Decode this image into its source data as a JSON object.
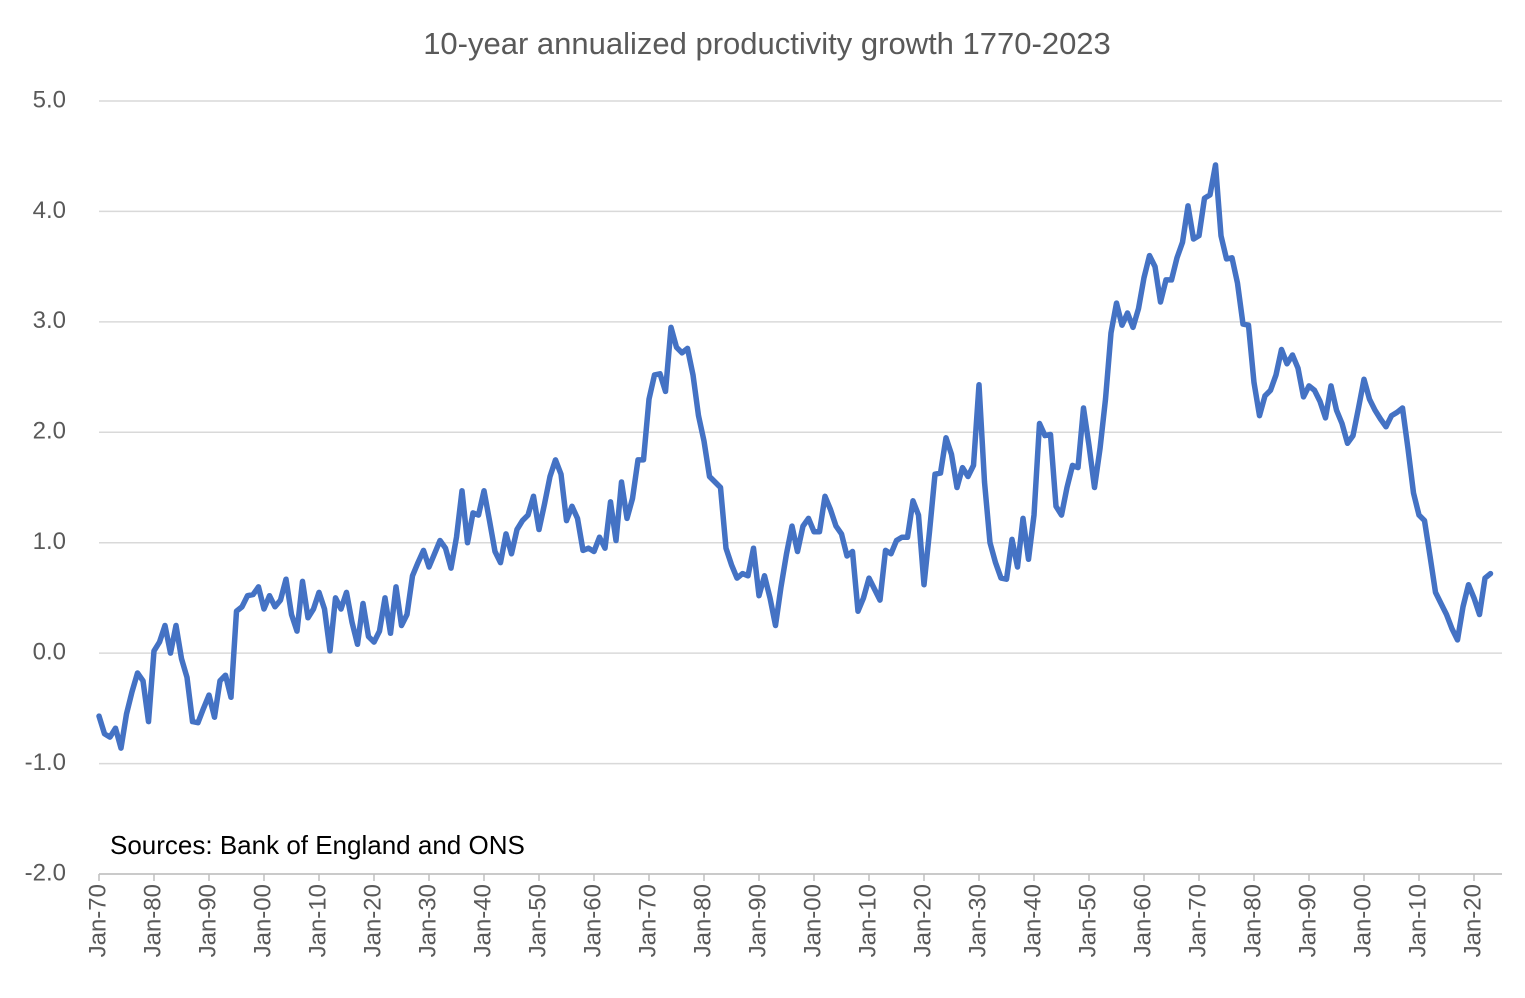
{
  "chart_data": {
    "type": "line",
    "title": "10-year annualized productivity growth 1770-2023",
    "annotation": "Sources: Bank of England and ONS",
    "categories": [
      "Jan-70",
      null,
      null,
      null,
      null,
      null,
      null,
      null,
      null,
      null,
      "Jan-80",
      null,
      null,
      null,
      null,
      null,
      null,
      null,
      null,
      null,
      "Jan-90",
      null,
      null,
      null,
      null,
      null,
      null,
      null,
      null,
      null,
      "Jan-00",
      null,
      null,
      null,
      null,
      null,
      null,
      null,
      null,
      null,
      "Jan-10",
      null,
      null,
      null,
      null,
      null,
      null,
      null,
      null,
      null,
      "Jan-20",
      null,
      null,
      null,
      null,
      null,
      null,
      null,
      null,
      null,
      "Jan-30",
      null,
      null,
      null,
      null,
      null,
      null,
      null,
      null,
      null,
      "Jan-40",
      null,
      null,
      null,
      null,
      null,
      null,
      null,
      null,
      null,
      "Jan-50",
      null,
      null,
      null,
      null,
      null,
      null,
      null,
      null,
      null,
      "Jan-60",
      null,
      null,
      null,
      null,
      null,
      null,
      null,
      null,
      null,
      "Jan-70",
      null,
      null,
      null,
      null,
      null,
      null,
      null,
      null,
      null,
      "Jan-80",
      null,
      null,
      null,
      null,
      null,
      null,
      null,
      null,
      null,
      "Jan-90",
      null,
      null,
      null,
      null,
      null,
      null,
      null,
      null,
      null,
      "Jan-00",
      null,
      null,
      null,
      null,
      null,
      null,
      null,
      null,
      null,
      "Jan-10",
      null,
      null,
      null,
      null,
      null,
      null,
      null,
      null,
      null,
      "Jan-20",
      null,
      null,
      null,
      null,
      null,
      null,
      null,
      null,
      null,
      "Jan-30",
      null,
      null,
      null,
      null,
      null,
      null,
      null,
      null,
      null,
      "Jan-40",
      null,
      null,
      null,
      null,
      null,
      null,
      null,
      null,
      null,
      "Jan-50",
      null,
      null,
      null,
      null,
      null,
      null,
      null,
      null,
      null,
      "Jan-60",
      null,
      null,
      null,
      null,
      null,
      null,
      null,
      null,
      null,
      "Jan-70",
      null,
      null,
      null,
      null,
      null,
      null,
      null,
      null,
      null,
      "Jan-80",
      null,
      null,
      null,
      null,
      null,
      null,
      null,
      null,
      null,
      "Jan-90",
      null,
      null,
      null,
      null,
      null,
      null,
      null,
      null,
      null,
      "Jan-00",
      null,
      null,
      null,
      null,
      null,
      null,
      null,
      null,
      null,
      "Jan-10",
      null,
      null,
      null,
      null,
      null,
      null,
      null,
      null,
      null,
      "Jan-20",
      null,
      null,
      null
    ],
    "series": [
      {
        "color": "#4472c4",
        "values": [
          -0.57,
          -0.73,
          -0.76,
          -0.68,
          -0.86,
          -0.55,
          -0.35,
          -0.18,
          -0.25,
          -0.62,
          0.02,
          0.1,
          0.25,
          0.0,
          0.25,
          -0.05,
          -0.22,
          -0.62,
          -0.63,
          -0.5,
          -0.38,
          -0.58,
          -0.25,
          -0.2,
          -0.4,
          0.38,
          0.42,
          0.52,
          0.53,
          0.6,
          0.4,
          0.52,
          0.42,
          0.48,
          0.67,
          0.35,
          0.2,
          0.65,
          0.32,
          0.4,
          0.55,
          0.4,
          0.02,
          0.5,
          0.4,
          0.55,
          0.28,
          0.08,
          0.45,
          0.15,
          0.1,
          0.2,
          0.5,
          0.18,
          0.6,
          0.25,
          0.35,
          0.7,
          0.82,
          0.93,
          0.78,
          0.9,
          1.02,
          0.95,
          0.77,
          1.05,
          1.47,
          1.0,
          1.27,
          1.25,
          1.47,
          1.2,
          0.92,
          0.82,
          1.08,
          0.9,
          1.12,
          1.2,
          1.25,
          1.42,
          1.12,
          1.35,
          1.6,
          1.75,
          1.62,
          1.2,
          1.33,
          1.22,
          0.93,
          0.95,
          0.92,
          1.05,
          0.95,
          1.37,
          1.02,
          1.55,
          1.22,
          1.4,
          1.75,
          1.75,
          2.3,
          2.52,
          2.53,
          2.37,
          2.95,
          2.77,
          2.72,
          2.76,
          2.52,
          2.15,
          1.92,
          1.6,
          1.55,
          1.5,
          0.95,
          0.8,
          0.68,
          0.72,
          0.7,
          0.95,
          0.52,
          0.7,
          0.5,
          0.25,
          0.6,
          0.9,
          1.15,
          0.92,
          1.15,
          1.22,
          1.1,
          1.1,
          1.42,
          1.3,
          1.15,
          1.08,
          0.88,
          0.92,
          0.38,
          0.5,
          0.68,
          0.58,
          0.48,
          0.93,
          0.9,
          1.02,
          1.05,
          1.05,
          1.38,
          1.25,
          0.62,
          1.1,
          1.62,
          1.63,
          1.95,
          1.8,
          1.5,
          1.68,
          1.6,
          1.7,
          2.43,
          1.55,
          1.0,
          0.82,
          0.68,
          0.67,
          1.03,
          0.78,
          1.22,
          0.85,
          1.25,
          2.08,
          1.97,
          1.98,
          1.33,
          1.25,
          1.5,
          1.7,
          1.68,
          2.22,
          1.88,
          1.5,
          1.85,
          2.3,
          2.9,
          3.17,
          2.97,
          3.08,
          2.95,
          3.12,
          3.4,
          3.6,
          3.5,
          3.18,
          3.38,
          3.38,
          3.58,
          3.72,
          4.05,
          3.75,
          3.78,
          4.12,
          4.15,
          4.42,
          3.78,
          3.57,
          3.58,
          3.35,
          2.98,
          2.97,
          2.45,
          2.15,
          2.33,
          2.38,
          2.52,
          2.75,
          2.62,
          2.7,
          2.58,
          2.32,
          2.42,
          2.38,
          2.28,
          2.13,
          2.42,
          2.2,
          2.08,
          1.9,
          1.97,
          2.22,
          2.48,
          2.3,
          2.2,
          2.12,
          2.05,
          2.15,
          2.18,
          2.22,
          1.85,
          1.45,
          1.25,
          1.2,
          0.88,
          0.55,
          0.45,
          0.35,
          0.22,
          0.12,
          0.42,
          0.62,
          0.5,
          0.35,
          0.68,
          0.72
        ]
      }
    ],
    "ylim": [
      -2,
      5
    ],
    "yticks": [
      {
        "value": -2,
        "label": "-2.0"
      },
      {
        "value": -1,
        "label": "-1.0"
      },
      {
        "value": 0,
        "label": "0.0"
      },
      {
        "value": 1,
        "label": "1.0"
      },
      {
        "value": 2,
        "label": "2.0"
      },
      {
        "value": 3,
        "label": "3.0"
      },
      {
        "value": 4,
        "label": "4.0"
      },
      {
        "value": 5,
        "label": "5.0"
      }
    ],
    "grid": true
  }
}
